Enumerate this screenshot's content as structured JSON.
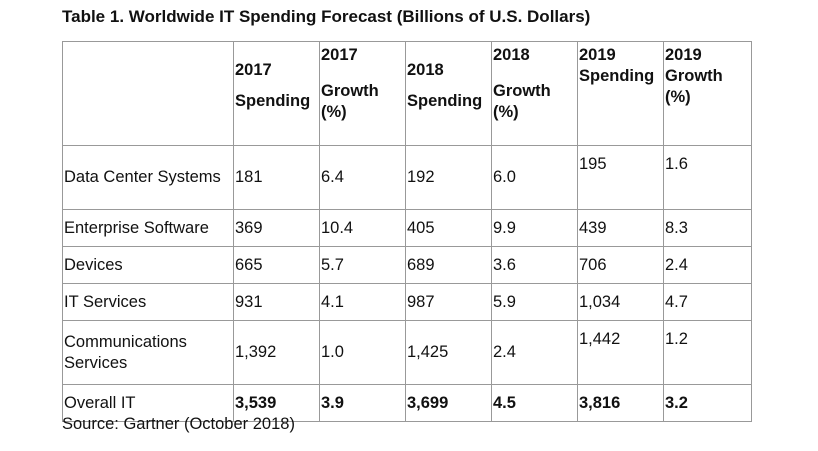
{
  "title": "Table 1. Worldwide IT Spending Forecast (Billions of U.S. Dollars)",
  "headers": {
    "h2017_sp_a": "2017",
    "h2017_sp_b": "Spending",
    "h2017_gr_a": "2017",
    "h2017_gr_b": "Growth",
    "h2017_gr_c": "(%)",
    "h2018_sp_a": "2018",
    "h2018_sp_b": "Spending",
    "h2018_gr_a": "2018",
    "h2018_gr_b": "Growth",
    "h2018_gr_c": "(%)",
    "h2019_sp_a": "2019",
    "h2019_sp_b": "Spending",
    "h2019_gr_a": "2019",
    "h2019_gr_b": "Growth",
    "h2019_gr_c": "(%)"
  },
  "rows": [
    {
      "category": "Data Center Systems",
      "cells": [
        "181",
        "6.4",
        "192",
        "6.0",
        "195",
        "1.6"
      ]
    },
    {
      "category": "Enterprise Software",
      "cells": [
        "369",
        "10.4",
        "405",
        "9.9",
        "439",
        "8.3"
      ]
    },
    {
      "category": "Devices",
      "cells": [
        "665",
        "5.7",
        "689",
        "3.6",
        "706",
        "2.4"
      ]
    },
    {
      "category": "IT Services",
      "cells": [
        "931",
        "4.1",
        "987",
        "5.9",
        "1,034",
        "4.7"
      ]
    },
    {
      "category": "Communications Services",
      "cells": [
        "1,392",
        "1.0",
        "1,425",
        "2.4",
        "1,442",
        "1.2"
      ]
    }
  ],
  "total": {
    "category": "Overall IT",
    "cells": [
      "3,539",
      "3.9",
      "3,699",
      "4.5",
      "3,816",
      "3.2"
    ]
  },
  "source": "Source: Gartner (October 2018)"
}
